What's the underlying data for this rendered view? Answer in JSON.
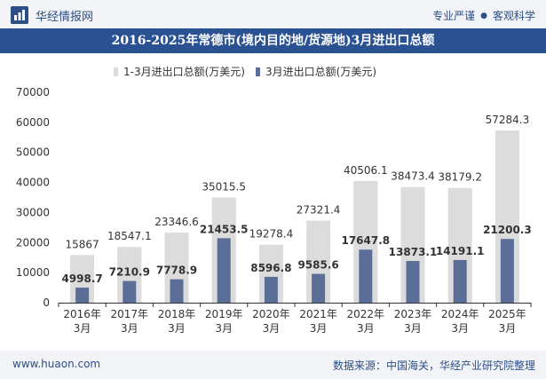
{
  "header": {
    "brand": "华经情报网",
    "slogan_left": "专业严谨",
    "slogan_sep": "●",
    "slogan_right": "客观科学"
  },
  "colors": {
    "bar_cumulative": "#dcdcdc",
    "bar_month": "#5b6e98",
    "title_bg": "#2a5192",
    "brand_text": "#2b4f86"
  },
  "chart_data": {
    "type": "bar",
    "title": "2016-2025年常德市(境内目的地/货源地)3月进出口总额",
    "categories": [
      [
        "2016年",
        "3月"
      ],
      [
        "2017年",
        "3月"
      ],
      [
        "2018年",
        "3月"
      ],
      [
        "2019年",
        "3月"
      ],
      [
        "2020年",
        "3月"
      ],
      [
        "2021年",
        "3月"
      ],
      [
        "2022年",
        "3月"
      ],
      [
        "2023年",
        "3月"
      ],
      [
        "2024年",
        "3月"
      ],
      [
        "2025年",
        "3月"
      ]
    ],
    "series": [
      {
        "name": "1-3月进出口总额(万美元)",
        "values": [
          15867,
          18547.1,
          23346.6,
          35015.5,
          19278.4,
          27321.4,
          40506.1,
          38473.4,
          38179.2,
          57284.3
        ]
      },
      {
        "name": "3月进出口总额(万美元)",
        "values": [
          4998.7,
          7210.9,
          7778.9,
          21453.5,
          8596.8,
          9585.6,
          17647.8,
          13873.1,
          14191.1,
          21200.3
        ]
      }
    ],
    "yticks": [
      0,
      10000,
      20000,
      30000,
      40000,
      50000,
      60000,
      70000
    ],
    "ylim": [
      0,
      70000
    ],
    "legend_position": "top-center",
    "grid": false
  },
  "footer": {
    "website": "www.huaon.com",
    "source": "数据来源：中国海关，华经产业研究院整理"
  }
}
